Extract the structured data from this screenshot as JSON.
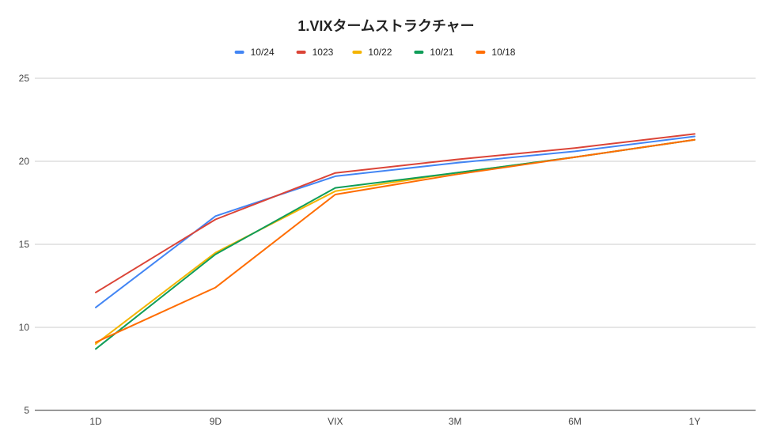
{
  "chart_data": {
    "type": "line",
    "title": "1.VIXタームストラクチャー",
    "xlabel": "",
    "ylabel": "",
    "categories": [
      "1D",
      "9D",
      "VIX",
      "3M",
      "6M",
      "1Y"
    ],
    "ylim": [
      5,
      25
    ],
    "yticks": [
      5,
      10,
      15,
      20,
      25
    ],
    "grid": true,
    "legend_position": "top",
    "series": [
      {
        "name": "10/24",
        "color": "#4285F4",
        "values": [
          11.2,
          16.7,
          19.1,
          19.9,
          20.6,
          21.5
        ]
      },
      {
        "name": "1023",
        "color": "#DB4437",
        "values": [
          12.1,
          16.5,
          19.3,
          20.1,
          20.8,
          21.65
        ]
      },
      {
        "name": "10/22",
        "color": "#F4B400",
        "values": [
          9.0,
          14.5,
          18.2,
          19.3,
          20.25,
          21.3
        ]
      },
      {
        "name": "10/21",
        "color": "#0F9D58",
        "values": [
          8.7,
          14.4,
          18.4,
          19.3,
          20.25,
          21.3
        ]
      },
      {
        "name": "10/18",
        "color": "#FF6D01",
        "values": [
          9.1,
          12.4,
          18.0,
          19.2,
          20.25,
          21.3
        ]
      }
    ]
  }
}
